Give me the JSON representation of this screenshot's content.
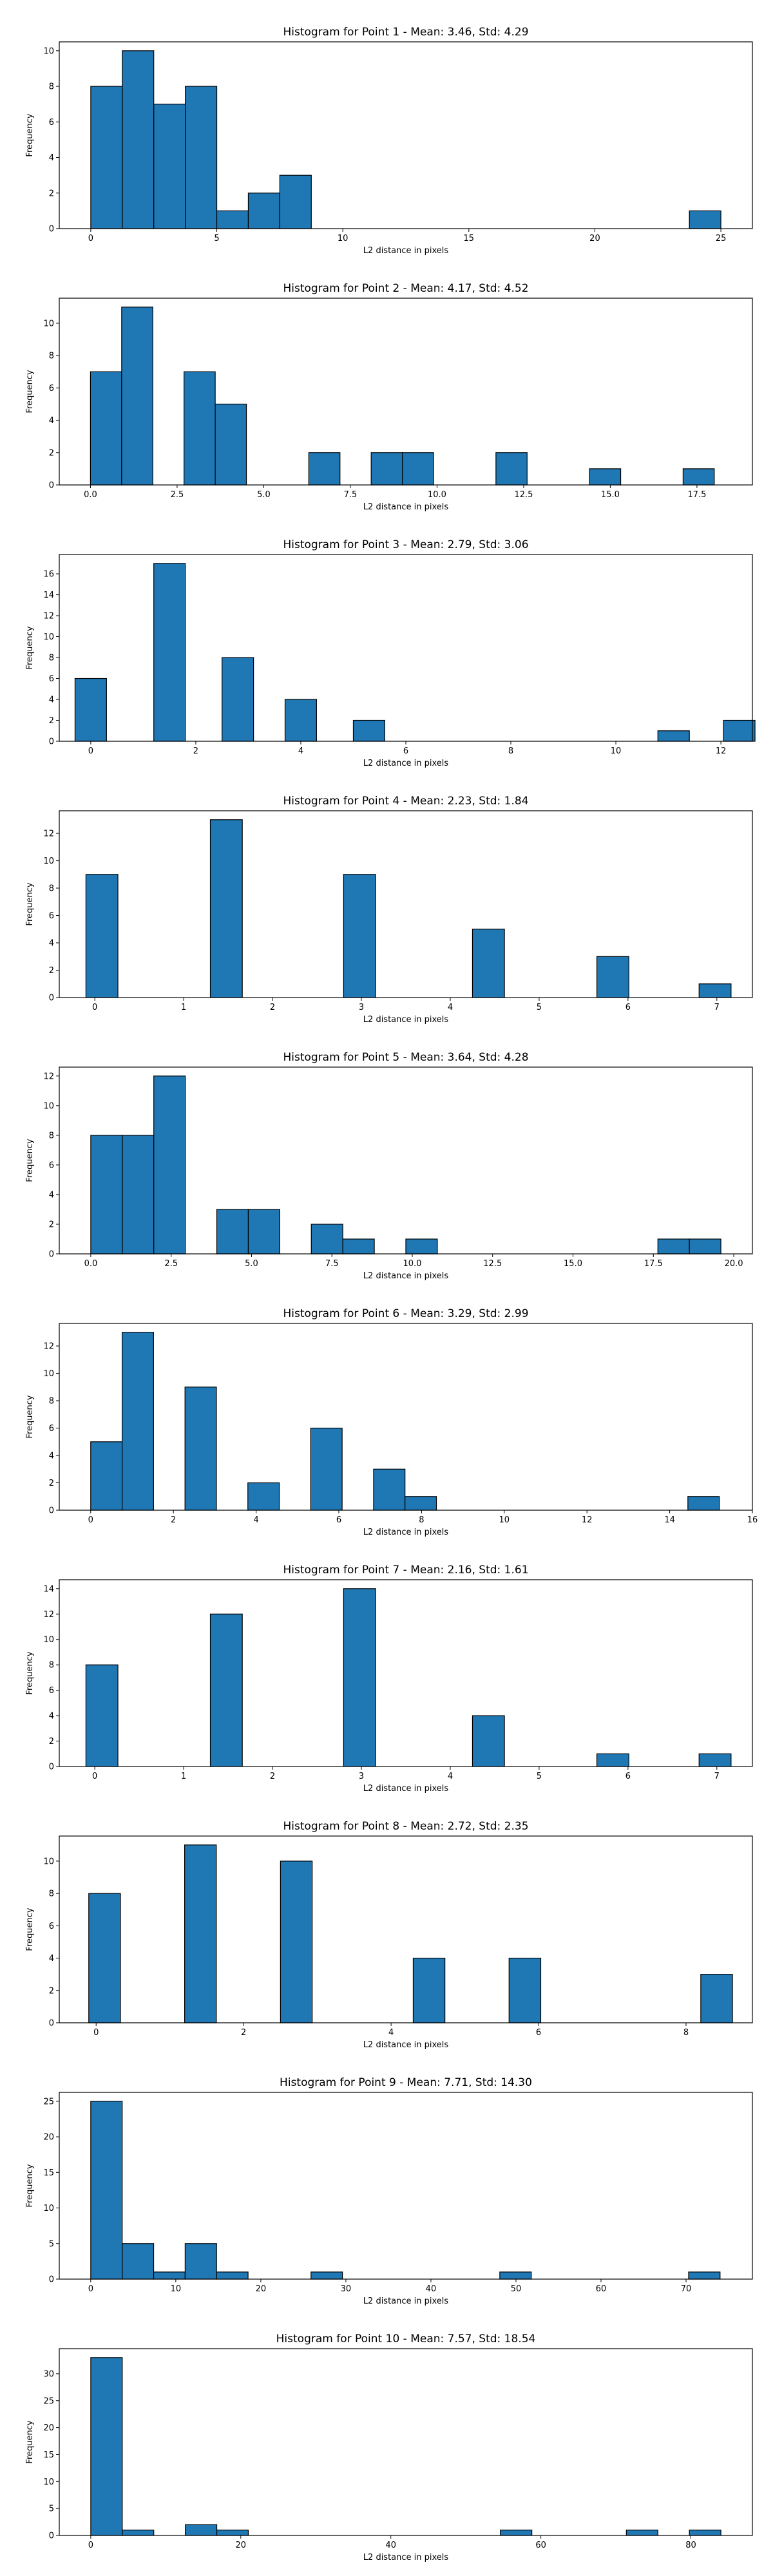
{
  "chart_data": [
    {
      "type": "bar",
      "title": "Histogram for Point 1 - Mean: 3.46, Std: 4.29",
      "xlabel": "L2 distance in pixels",
      "ylabel": "Frequency",
      "xlim": [
        -1.25,
        26.25
      ],
      "ylim": [
        0,
        10.5
      ],
      "xticks": [
        0,
        5,
        10,
        15,
        20,
        25
      ],
      "yticks": [
        0,
        2,
        4,
        6,
        8,
        10
      ],
      "bin_width": 1.25,
      "bars": [
        {
          "x": 0,
          "count": 8
        },
        {
          "x": 1.25,
          "count": 10
        },
        {
          "x": 2.5,
          "count": 7
        },
        {
          "x": 3.75,
          "count": 8
        },
        {
          "x": 5,
          "count": 1
        },
        {
          "x": 6.25,
          "count": 2
        },
        {
          "x": 7.5,
          "count": 3
        },
        {
          "x": 23.75,
          "count": 1
        }
      ]
    },
    {
      "type": "bar",
      "title": "Histogram for Point 2 - Mean: 4.17, Std: 4.52",
      "xlabel": "L2 distance in pixels",
      "ylabel": "Frequency",
      "xlim": [
        -0.9,
        19.1
      ],
      "ylim": [
        0,
        11.55
      ],
      "xticks": [
        0.0,
        2.5,
        5.0,
        7.5,
        10.0,
        12.5,
        15.0,
        17.5
      ],
      "xtick_labels": [
        "0.0",
        "2.5",
        "5.0",
        "7.5",
        "10.0",
        "12.5",
        "15.0",
        "17.5"
      ],
      "yticks": [
        0,
        2,
        4,
        6,
        8,
        10
      ],
      "bin_width": 0.9,
      "bars": [
        {
          "x": 0,
          "count": 7
        },
        {
          "x": 0.9,
          "count": 11
        },
        {
          "x": 2.7,
          "count": 7
        },
        {
          "x": 3.6,
          "count": 5
        },
        {
          "x": 6.3,
          "count": 2
        },
        {
          "x": 8.1,
          "count": 2
        },
        {
          "x": 9.0,
          "count": 2
        },
        {
          "x": 11.7,
          "count": 2
        },
        {
          "x": 14.4,
          "count": 1
        },
        {
          "x": 17.1,
          "count": 1
        }
      ]
    },
    {
      "type": "bar",
      "title": "Histogram for Point 3 - Mean: 2.79, Std: 3.06",
      "xlabel": "L2 distance in pixels",
      "ylabel": "Frequency",
      "xlim": [
        -0.6,
        12.6
      ],
      "ylim": [
        0,
        17.85
      ],
      "xticks": [
        0,
        2,
        4,
        6,
        8,
        10,
        12
      ],
      "yticks": [
        0,
        2,
        4,
        6,
        8,
        10,
        12,
        14,
        16
      ],
      "bin_width": 0.6,
      "bars": [
        {
          "x": -0.3,
          "count": 6
        },
        {
          "x": 1.2,
          "count": 17
        },
        {
          "x": 2.5,
          "count": 8
        },
        {
          "x": 3.7,
          "count": 4
        },
        {
          "x": 5.0,
          "count": 2
        },
        {
          "x": 10.8,
          "count": 1
        },
        {
          "x": 12.05,
          "count": 2
        }
      ]
    },
    {
      "type": "bar",
      "title": "Histogram for Point 4 - Mean: 2.23, Std: 1.84",
      "xlabel": "L2 distance in pixels",
      "ylabel": "Frequency",
      "xlim": [
        -0.4,
        7.4
      ],
      "ylim": [
        0,
        13.65
      ],
      "xticks": [
        0,
        1,
        2,
        3,
        4,
        5,
        6,
        7
      ],
      "yticks": [
        0,
        2,
        4,
        6,
        8,
        10,
        12
      ],
      "bin_width": 0.36,
      "bars": [
        {
          "x": -0.1,
          "count": 9
        },
        {
          "x": 1.3,
          "count": 13
        },
        {
          "x": 2.8,
          "count": 9
        },
        {
          "x": 4.25,
          "count": 5
        },
        {
          "x": 5.65,
          "count": 3
        },
        {
          "x": 6.8,
          "count": 1
        }
      ]
    },
    {
      "type": "bar",
      "title": "Histogram for Point 5 - Mean: 3.64, Std: 4.28",
      "xlabel": "L2 distance in pixels",
      "ylabel": "Frequency",
      "xlim": [
        -0.98,
        20.58
      ],
      "ylim": [
        0,
        12.6
      ],
      "xticks": [
        0.0,
        2.5,
        5.0,
        7.5,
        10.0,
        12.5,
        15.0,
        17.5,
        20.0
      ],
      "xtick_labels": [
        "0.0",
        "2.5",
        "5.0",
        "7.5",
        "10.0",
        "12.5",
        "15.0",
        "17.5",
        "20.0"
      ],
      "yticks": [
        0,
        2,
        4,
        6,
        8,
        10,
        12
      ],
      "bin_width": 0.98,
      "bars": [
        {
          "x": 0,
          "count": 8
        },
        {
          "x": 0.98,
          "count": 8
        },
        {
          "x": 1.96,
          "count": 12
        },
        {
          "x": 3.92,
          "count": 3
        },
        {
          "x": 4.9,
          "count": 3
        },
        {
          "x": 6.86,
          "count": 2
        },
        {
          "x": 7.84,
          "count": 1
        },
        {
          "x": 9.8,
          "count": 1
        },
        {
          "x": 17.64,
          "count": 1
        },
        {
          "x": 18.62,
          "count": 1
        }
      ]
    },
    {
      "type": "bar",
      "title": "Histogram for Point 6 - Mean: 3.29, Std: 2.99",
      "xlabel": "L2 distance in pixels",
      "ylabel": "Frequency",
      "xlim": [
        -0.76,
        16.0
      ],
      "ylim": [
        0,
        13.65
      ],
      "xticks": [
        0,
        2,
        4,
        6,
        8,
        10,
        12,
        14,
        16
      ],
      "yticks": [
        0,
        2,
        4,
        6,
        8,
        10,
        12
      ],
      "bin_width": 0.76,
      "bars": [
        {
          "x": 0,
          "count": 5
        },
        {
          "x": 0.76,
          "count": 13
        },
        {
          "x": 2.28,
          "count": 9
        },
        {
          "x": 3.8,
          "count": 2
        },
        {
          "x": 5.32,
          "count": 6
        },
        {
          "x": 6.84,
          "count": 3
        },
        {
          "x": 7.6,
          "count": 1
        },
        {
          "x": 14.44,
          "count": 1
        }
      ]
    },
    {
      "type": "bar",
      "title": "Histogram for Point 7 - Mean: 2.16, Std: 1.61",
      "xlabel": "L2 distance in pixels",
      "ylabel": "Frequency",
      "xlim": [
        -0.4,
        7.4
      ],
      "ylim": [
        0,
        14.7
      ],
      "xticks": [
        0,
        1,
        2,
        3,
        4,
        5,
        6,
        7
      ],
      "yticks": [
        0,
        2,
        4,
        6,
        8,
        10,
        12,
        14
      ],
      "bin_width": 0.36,
      "bars": [
        {
          "x": -0.1,
          "count": 8
        },
        {
          "x": 1.3,
          "count": 12
        },
        {
          "x": 2.8,
          "count": 14
        },
        {
          "x": 4.25,
          "count": 4
        },
        {
          "x": 5.65,
          "count": 1
        },
        {
          "x": 6.8,
          "count": 1
        }
      ]
    },
    {
      "type": "bar",
      "title": "Histogram for Point 8 - Mean: 2.72, Std: 2.35",
      "xlabel": "L2 distance in pixels",
      "ylabel": "Frequency",
      "xlim": [
        -0.5,
        8.9
      ],
      "ylim": [
        0,
        11.55
      ],
      "xticks": [
        0,
        2,
        4,
        6,
        8
      ],
      "yticks": [
        0,
        2,
        4,
        6,
        8,
        10
      ],
      "bin_width": 0.43,
      "bars": [
        {
          "x": -0.1,
          "count": 8
        },
        {
          "x": 1.2,
          "count": 11
        },
        {
          "x": 2.5,
          "count": 10
        },
        {
          "x": 4.3,
          "count": 4
        },
        {
          "x": 5.6,
          "count": 4
        },
        {
          "x": 8.2,
          "count": 3
        }
      ]
    },
    {
      "type": "bar",
      "title": "Histogram for Point 9 - Mean: 7.71, Std: 14.30",
      "xlabel": "L2 distance in pixels",
      "ylabel": "Frequency",
      "xlim": [
        -3.7,
        77.8
      ],
      "ylim": [
        0,
        26.25
      ],
      "xticks": [
        0,
        10,
        20,
        30,
        40,
        50,
        60,
        70
      ],
      "yticks": [
        0,
        5,
        10,
        15,
        20,
        25
      ],
      "bin_width": 3.7,
      "bars": [
        {
          "x": 0,
          "count": 25
        },
        {
          "x": 3.7,
          "count": 5
        },
        {
          "x": 7.4,
          "count": 1
        },
        {
          "x": 11.1,
          "count": 5
        },
        {
          "x": 14.8,
          "count": 1
        },
        {
          "x": 25.9,
          "count": 1
        },
        {
          "x": 48.1,
          "count": 1
        },
        {
          "x": 70.3,
          "count": 1
        }
      ]
    },
    {
      "type": "bar",
      "title": "Histogram for Point 10 - Mean: 7.57, Std: 18.54",
      "xlabel": "L2 distance in pixels",
      "ylabel": "Frequency",
      "xlim": [
        -4.2,
        88.2
      ],
      "ylim": [
        0,
        34.65
      ],
      "xticks": [
        0,
        20,
        40,
        60,
        80
      ],
      "yticks": [
        0,
        5,
        10,
        15,
        20,
        25,
        30
      ],
      "bin_width": 4.2,
      "bars": [
        {
          "x": 0,
          "count": 33
        },
        {
          "x": 4.2,
          "count": 1
        },
        {
          "x": 12.6,
          "count": 2
        },
        {
          "x": 16.8,
          "count": 1
        },
        {
          "x": 54.6,
          "count": 1
        },
        {
          "x": 71.4,
          "count": 1
        },
        {
          "x": 79.8,
          "count": 1
        }
      ]
    }
  ]
}
